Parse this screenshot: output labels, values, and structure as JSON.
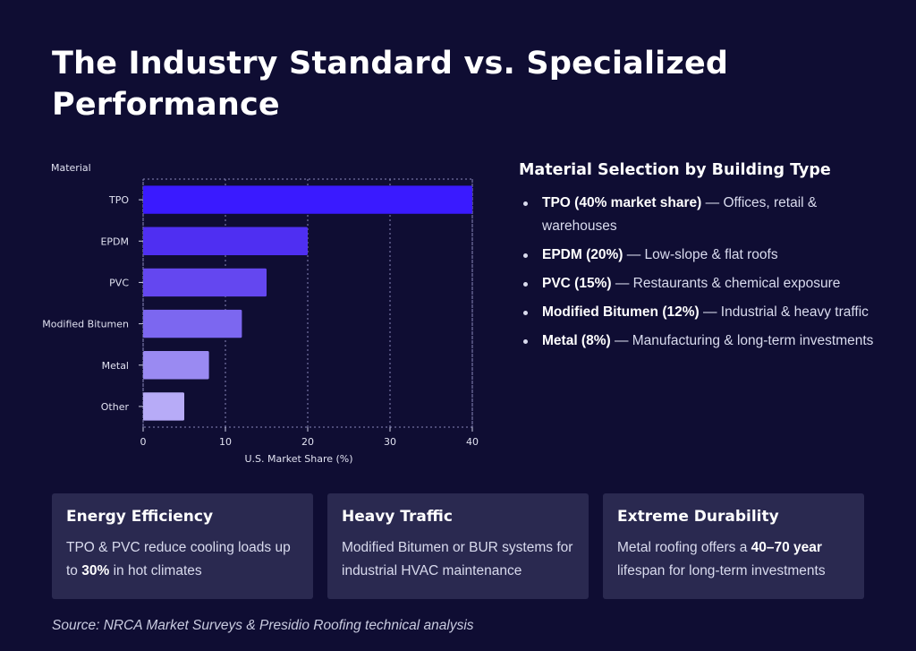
{
  "title": "The Industry Standard vs. Specialized Performance",
  "chart_data": {
    "type": "bar",
    "orientation": "horizontal",
    "categories": [
      "TPO",
      "EPDM",
      "PVC",
      "Modified Bitumen",
      "Metal",
      "Other"
    ],
    "values": [
      40,
      20,
      15,
      12,
      8,
      5
    ],
    "ylabel": "Material",
    "xlabel": "U.S. Market Share (%)",
    "xlim": [
      0,
      40
    ],
    "xticks": [
      0,
      10,
      20,
      30,
      40
    ],
    "grid": true,
    "colors": [
      "#3a1aff",
      "#4f2ff2",
      "#6447f0",
      "#7c67f0",
      "#9a8af2",
      "#b7abf7"
    ]
  },
  "panel": {
    "title": "Material Selection by Building Type",
    "items": [
      {
        "bold": "TPO (40% market share)",
        "text": " — Offices, retail & warehouses"
      },
      {
        "bold": "EPDM (20%)",
        "text": " — Low-slope & flat roofs"
      },
      {
        "bold": "PVC (15%)",
        "text": " — Restaurants & chemical exposure"
      },
      {
        "bold": "Modified Bitumen (12%)",
        "text": " — Industrial & heavy traffic"
      },
      {
        "bold": "Metal (8%)",
        "text": " — Manufacturing & long-term investments"
      }
    ]
  },
  "cards": [
    {
      "title": "Energy Efficiency",
      "pre": "TPO & PVC reduce cooling loads up to ",
      "bold": "30%",
      "post": " in hot climates"
    },
    {
      "title": "Heavy Traffic",
      "pre": "Modified Bitumen or BUR systems for industrial HVAC maintenance",
      "bold": "",
      "post": ""
    },
    {
      "title": "Extreme Durability",
      "pre": "Metal roofing offers a ",
      "bold": "40–70 year",
      "post": " lifespan for long-term investments"
    }
  ],
  "source": "Source: NRCA Market Surveys & Presidio Roofing technical analysis"
}
